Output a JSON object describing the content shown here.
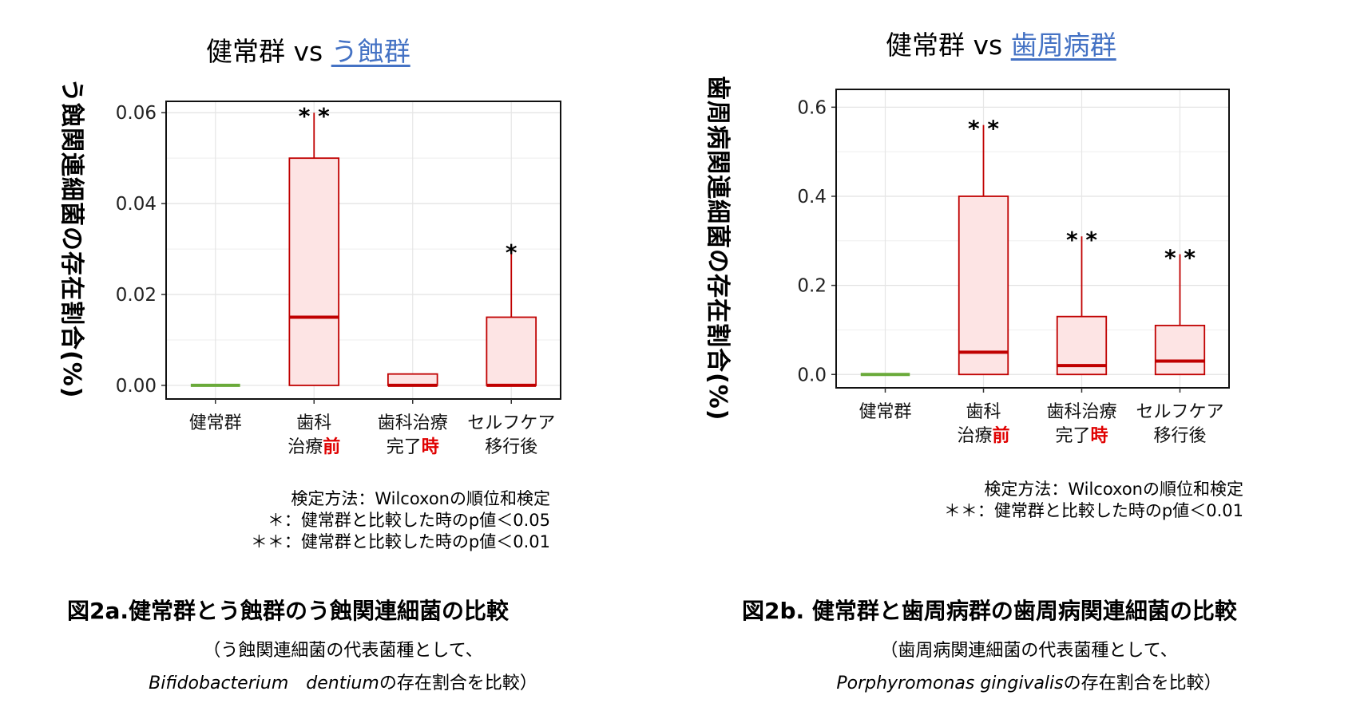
{
  "panel_a": {
    "title_prefix": "健常群 vs ",
    "title_group": "う蝕群",
    "ylabel": "う蝕関連細菌の存在割合(%)",
    "note_lines": [
      "検定方法：Wilcoxonの順位和検定",
      "＊：健常群と比較した時のp値＜0.05",
      "＊＊：健常群と比較した時のp値＜0.01"
    ],
    "figure_title": "図2a.健常群とう蝕群のう蝕関連細菌の比較",
    "caption_line1": "（う蝕関連細菌の代表菌種として、",
    "caption_species": "Bifidobacterium　dentium",
    "caption_rest": "の存在割合を比較）"
  },
  "panel_b": {
    "title_prefix": "健常群 vs ",
    "title_group": "歯周病群",
    "ylabel": "歯周病関連細菌の存在割合(%)",
    "note_lines": [
      "検定方法：Wilcoxonの順位和検定",
      "＊＊：健常群と比較した時のp値＜0.01"
    ],
    "figure_title": "図2b.  健常群と歯周病群の歯周病関連細菌の比較",
    "caption_line1": "（歯周病関連細菌の代表菌種として、",
    "caption_species": "Porphyromonas gingivalis",
    "caption_rest": "の存在割合を比較）"
  },
  "chart_data": [
    {
      "type": "box",
      "title": "健常群 vs う蝕群",
      "ylabel": "う蝕関連細菌の存在割合(%)",
      "ylim": [
        -0.003,
        0.0625
      ],
      "yticks": [
        0.0,
        0.02,
        0.04,
        0.06
      ],
      "ytick_labels": [
        "0.00",
        "0.02",
        "0.04",
        "0.06"
      ],
      "categories": [
        {
          "line1": "健常群",
          "line2": "",
          "line2_emph": ""
        },
        {
          "line1": "歯科",
          "line2": "治療",
          "line2_emph": "前"
        },
        {
          "line1": "歯科治療",
          "line2": "完了",
          "line2_emph": "時"
        },
        {
          "line1": "セルフケア",
          "line2": "移行後",
          "line2_emph": ""
        }
      ],
      "boxes": [
        {
          "min": 0.0,
          "q1": 0.0,
          "median": 0.0,
          "q3": 0.0,
          "max": 0.0,
          "color": "#6aaa3a",
          "sig": ""
        },
        {
          "min": 0.0,
          "q1": 0.0,
          "median": 0.015,
          "q3": 0.05,
          "max": 0.06,
          "color": "#c00000",
          "sig": "**"
        },
        {
          "min": 0.0,
          "q1": 0.0,
          "median": 0.0,
          "q3": 0.0025,
          "max": 0.0025,
          "color": "#c00000",
          "sig": ""
        },
        {
          "min": 0.0,
          "q1": 0.0,
          "median": 0.0,
          "q3": 0.015,
          "max": 0.03,
          "color": "#c00000",
          "sig": "*"
        }
      ]
    },
    {
      "type": "box",
      "title": "健常群 vs 歯周病群",
      "ylabel": "歯周病関連細菌の存在割合(%)",
      "ylim": [
        -0.03,
        0.64
      ],
      "yticks": [
        0.0,
        0.2,
        0.4,
        0.6
      ],
      "ytick_labels": [
        "0.0",
        "0.2",
        "0.4",
        "0.6"
      ],
      "categories": [
        {
          "line1": "健常群",
          "line2": "",
          "line2_emph": ""
        },
        {
          "line1": "歯科",
          "line2": "治療",
          "line2_emph": "前"
        },
        {
          "line1": "歯科治療",
          "line2": "完了",
          "line2_emph": "時"
        },
        {
          "line1": "セルフケア",
          "line2": "移行後",
          "line2_emph": ""
        }
      ],
      "boxes": [
        {
          "min": 0.0,
          "q1": 0.0,
          "median": 0.0,
          "q3": 0.0,
          "max": 0.0,
          "color": "#6aaa3a",
          "sig": ""
        },
        {
          "min": 0.0,
          "q1": 0.0,
          "median": 0.05,
          "q3": 0.4,
          "max": 0.56,
          "color": "#c00000",
          "sig": "**"
        },
        {
          "min": 0.0,
          "q1": 0.0,
          "median": 0.02,
          "q3": 0.13,
          "max": 0.31,
          "color": "#c00000",
          "sig": "**"
        },
        {
          "min": 0.0,
          "q1": 0.0,
          "median": 0.03,
          "q3": 0.11,
          "max": 0.27,
          "color": "#c00000",
          "sig": "**"
        }
      ]
    }
  ]
}
